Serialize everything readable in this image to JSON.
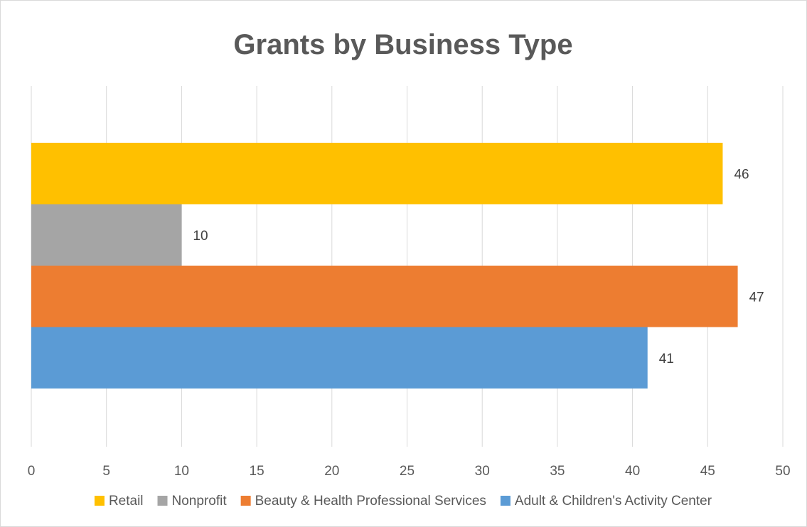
{
  "chart_data": {
    "type": "bar",
    "orientation": "horizontal",
    "title": "Grants by Business Type",
    "xlabel": "",
    "ylabel": "",
    "xlim": [
      0,
      50
    ],
    "x_ticks": [
      "0",
      "5",
      "10",
      "15",
      "20",
      "25",
      "30",
      "35",
      "40",
      "45",
      "50"
    ],
    "grid": true,
    "legend_position": "bottom",
    "series": [
      {
        "name": "Retail",
        "value": 46,
        "color": "#FFC000"
      },
      {
        "name": "Nonprofit",
        "value": 10,
        "color": "#A5A5A5"
      },
      {
        "name": "Beauty & Health Professional Services",
        "value": 47,
        "color": "#ED7D31"
      },
      {
        "name": "Adult & Children's Activity Center",
        "value": 41,
        "color": "#5B9BD5"
      }
    ]
  }
}
